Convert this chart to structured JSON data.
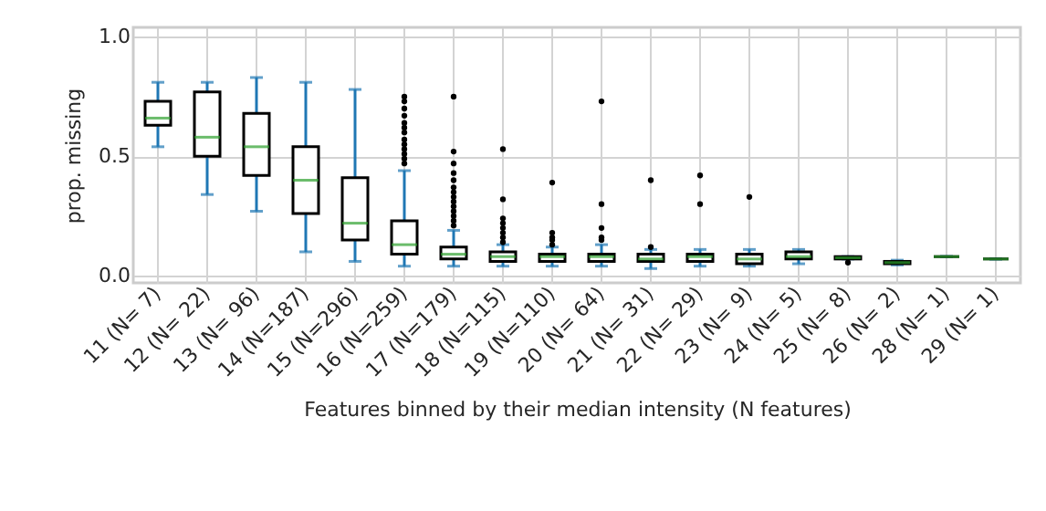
{
  "chart_data": {
    "type": "box",
    "xlabel": "Features binned by their median intensity (N features)",
    "ylabel": "prop. missing",
    "categories": [
      "11  (N=  7)",
      "12  (N= 22)",
      "13  (N= 96)",
      "14  (N=187)",
      "15  (N=296)",
      "16  (N=259)",
      "17  (N=179)",
      "18  (N=115)",
      "19  (N=110)",
      "20  (N= 64)",
      "21  (N= 31)",
      "22  (N= 29)",
      "23  (N=  9)",
      "24  (N=  5)",
      "25  (N=  8)",
      "26  (N=  2)",
      "28  (N=  1)",
      "29  (N=  1)"
    ],
    "boxes": [
      {
        "low": 0.54,
        "q1": 0.63,
        "median": 0.66,
        "q3": 0.73,
        "high": 0.81
      },
      {
        "low": 0.34,
        "q1": 0.5,
        "median": 0.58,
        "q3": 0.77,
        "high": 0.81
      },
      {
        "low": 0.27,
        "q1": 0.42,
        "median": 0.54,
        "q3": 0.68,
        "high": 0.83
      },
      {
        "low": 0.1,
        "q1": 0.26,
        "median": 0.4,
        "q3": 0.54,
        "high": 0.81
      },
      {
        "low": 0.06,
        "q1": 0.15,
        "median": 0.22,
        "q3": 0.41,
        "high": 0.78
      },
      {
        "low": 0.04,
        "q1": 0.09,
        "median": 0.13,
        "q3": 0.23,
        "high": 0.44,
        "outliers": [
          0.47,
          0.49,
          0.51,
          0.53,
          0.55,
          0.57,
          0.6,
          0.62,
          0.64,
          0.67,
          0.7,
          0.73,
          0.75
        ]
      },
      {
        "low": 0.04,
        "q1": 0.07,
        "median": 0.09,
        "q3": 0.12,
        "high": 0.19,
        "outliers": [
          0.21,
          0.23,
          0.25,
          0.27,
          0.29,
          0.31,
          0.33,
          0.35,
          0.37,
          0.4,
          0.43,
          0.47,
          0.52,
          0.75
        ]
      },
      {
        "low": 0.04,
        "q1": 0.06,
        "median": 0.08,
        "q3": 0.1,
        "high": 0.13,
        "outliers": [
          0.14,
          0.16,
          0.18,
          0.2,
          0.22,
          0.24,
          0.32,
          0.53
        ]
      },
      {
        "low": 0.04,
        "q1": 0.06,
        "median": 0.08,
        "q3": 0.09,
        "high": 0.12,
        "outliers": [
          0.13,
          0.15,
          0.16,
          0.18,
          0.39
        ]
      },
      {
        "low": 0.04,
        "q1": 0.06,
        "median": 0.08,
        "q3": 0.09,
        "high": 0.13,
        "outliers": [
          0.15,
          0.16,
          0.2,
          0.3,
          0.73
        ]
      },
      {
        "low": 0.03,
        "q1": 0.06,
        "median": 0.07,
        "q3": 0.09,
        "high": 0.11,
        "outliers": [
          0.12,
          0.4
        ]
      },
      {
        "low": 0.04,
        "q1": 0.06,
        "median": 0.08,
        "q3": 0.09,
        "high": 0.11,
        "outliers": [
          0.3,
          0.42
        ]
      },
      {
        "low": 0.04,
        "q1": 0.05,
        "median": 0.07,
        "q3": 0.09,
        "high": 0.11,
        "outliers": [
          0.33
        ]
      },
      {
        "low": 0.05,
        "q1": 0.07,
        "median": 0.08,
        "q3": 0.1,
        "high": 0.11
      },
      {
        "low": 0.07,
        "q1": 0.07,
        "median": 0.075,
        "q3": 0.08,
        "high": 0.08,
        "outliers": [
          0.055
        ]
      },
      {
        "low": 0.045,
        "q1": 0.05,
        "median": 0.055,
        "q3": 0.06,
        "high": 0.065
      },
      {
        "low": 0.08,
        "q1": 0.08,
        "median": 0.08,
        "q3": 0.08,
        "high": 0.08
      },
      {
        "low": 0.07,
        "q1": 0.07,
        "median": 0.07,
        "q3": 0.07,
        "high": 0.07
      }
    ],
    "ylim": [
      -0.03,
      1.04
    ],
    "yticks": [
      {
        "value": 0,
        "label": "0.0"
      },
      {
        "value": 0.5,
        "label": "0.5"
      },
      {
        "value": 1,
        "label": "1.0"
      }
    ],
    "grid": true
  }
}
